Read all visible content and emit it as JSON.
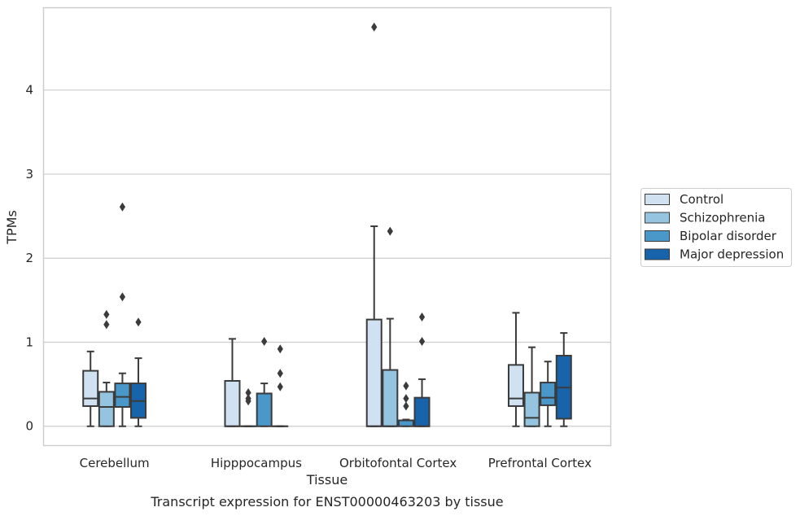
{
  "chart_data": {
    "type": "box",
    "caption": "Transcript expression for ENST00000463203 by tissue",
    "xlabel": "Tissue",
    "ylabel": "TPMs",
    "ylim": [
      -0.23,
      4.98
    ],
    "yticks": [
      0,
      1,
      2,
      3,
      4
    ],
    "grid": "horizontal",
    "legend_position": "right",
    "categories": [
      "Cerebellum",
      "Hipppocampus",
      "Orbitofontal Cortex",
      "Prefrontal Cortex"
    ],
    "series": [
      {
        "name": "Control",
        "color": "#d0e1f2",
        "boxes": [
          {
            "whisker_low": 0,
            "q1": 0.24,
            "median": 0.33,
            "q3": 0.66,
            "whisker_high": 0.89,
            "outliers": []
          },
          {
            "whisker_low": 0,
            "q1": 0,
            "median": 0,
            "q3": 0.54,
            "whisker_high": 1.04,
            "outliers": []
          },
          {
            "whisker_low": 0,
            "q1": 0,
            "median": 0,
            "q3": 1.27,
            "whisker_high": 2.38,
            "outliers": [
              4.75
            ]
          },
          {
            "whisker_low": 0,
            "q1": 0.24,
            "median": 0.33,
            "q3": 0.73,
            "whisker_high": 1.35,
            "outliers": []
          }
        ]
      },
      {
        "name": "Schizophrenia",
        "color": "#94c4df",
        "boxes": [
          {
            "whisker_low": 0,
            "q1": 0,
            "median": 0.23,
            "q3": 0.41,
            "whisker_high": 0.52,
            "outliers": [
              1.33,
              1.21
            ]
          },
          {
            "whisker_low": 0,
            "q1": 0,
            "median": 0,
            "q3": 0,
            "whisker_high": 0,
            "outliers": [
              0.4,
              0.33,
              0.3
            ]
          },
          {
            "whisker_low": 0,
            "q1": 0,
            "median": 0,
            "q3": 0.67,
            "whisker_high": 1.28,
            "outliers": [
              2.32
            ]
          },
          {
            "whisker_low": 0,
            "q1": 0,
            "median": 0.1,
            "q3": 0.4,
            "whisker_high": 0.94,
            "outliers": []
          }
        ]
      },
      {
        "name": "Bipolar disorder",
        "color": "#4a98c9",
        "boxes": [
          {
            "whisker_low": 0,
            "q1": 0.23,
            "median": 0.35,
            "q3": 0.51,
            "whisker_high": 0.63,
            "outliers": [
              2.61,
              1.54
            ]
          },
          {
            "whisker_low": 0,
            "q1": 0,
            "median": 0.39,
            "q3": 0.39,
            "whisker_high": 0.51,
            "outliers": [
              1.01
            ]
          },
          {
            "whisker_low": 0,
            "q1": 0,
            "median": 0.07,
            "q3": 0.07,
            "whisker_high": 0.08,
            "outliers": [
              0.48,
              0.33,
              0.24
            ]
          },
          {
            "whisker_low": 0,
            "q1": 0.25,
            "median": 0.34,
            "q3": 0.52,
            "whisker_high": 0.77,
            "outliers": []
          }
        ]
      },
      {
        "name": "Major depression",
        "color": "#1764ab",
        "boxes": [
          {
            "whisker_low": 0,
            "q1": 0.1,
            "median": 0.3,
            "q3": 0.51,
            "whisker_high": 0.81,
            "outliers": [
              1.24
            ]
          },
          {
            "whisker_low": 0,
            "q1": 0,
            "median": 0,
            "q3": 0,
            "whisker_high": 0,
            "outliers": [
              0.92,
              0.63,
              0.47
            ]
          },
          {
            "whisker_low": 0,
            "q1": 0,
            "median": 0,
            "q3": 0.34,
            "whisker_high": 0.56,
            "outliers": [
              1.3,
              1.01
            ]
          },
          {
            "whisker_low": 0,
            "q1": 0.09,
            "median": 0.46,
            "q3": 0.84,
            "whisker_high": 1.11,
            "outliers": []
          }
        ]
      }
    ]
  }
}
